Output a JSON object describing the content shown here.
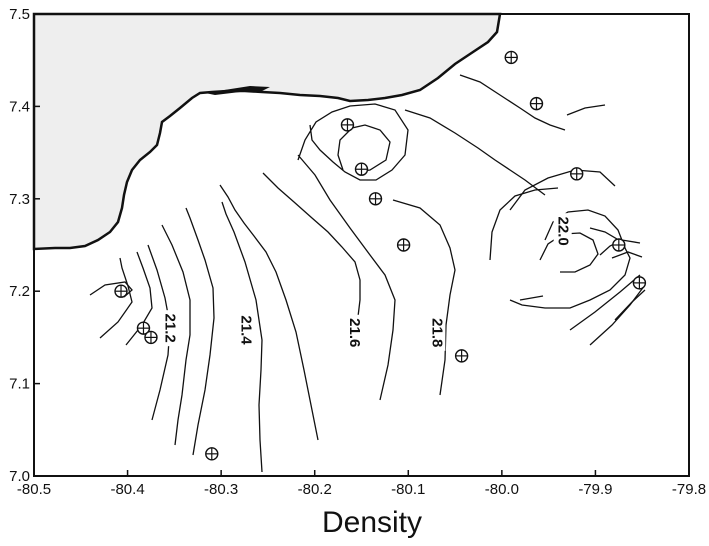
{
  "chart_data": {
    "type": "contour",
    "xlabel": "Density",
    "xlim": [
      -80.5,
      -79.8
    ],
    "ylim": [
      7.0,
      7.5
    ],
    "x_ticks": [
      "-80.5",
      "-80.4",
      "-80.3",
      "-80.2",
      "-80.1",
      "-80.0",
      "-79.9",
      "-79.8"
    ],
    "y_ticks": [
      "7.0",
      "7.1",
      "7.2",
      "7.3",
      "7.4",
      "7.5"
    ],
    "contour_labels": [
      {
        "text": "21.2",
        "lon": -80.355,
        "lat": 7.16
      },
      {
        "text": "21.4",
        "lon": -80.274,
        "lat": 7.158
      },
      {
        "text": "21.6",
        "lon": -80.158,
        "lat": 7.155
      },
      {
        "text": "21.8",
        "lon": -80.07,
        "lat": 7.155
      },
      {
        "text": "22.0",
        "lon": -79.935,
        "lat": 7.265
      }
    ],
    "stations": [
      {
        "lon": -79.99,
        "lat": 7.453
      },
      {
        "lon": -79.963,
        "lat": 7.403
      },
      {
        "lon": -80.165,
        "lat": 7.38
      },
      {
        "lon": -80.15,
        "lat": 7.332
      },
      {
        "lon": -80.135,
        "lat": 7.3
      },
      {
        "lon": -79.92,
        "lat": 7.327
      },
      {
        "lon": -80.105,
        "lat": 7.25
      },
      {
        "lon": -79.875,
        "lat": 7.25
      },
      {
        "lon": -79.853,
        "lat": 7.209
      },
      {
        "lon": -80.407,
        "lat": 7.2
      },
      {
        "lon": -80.383,
        "lat": 7.16
      },
      {
        "lon": -80.375,
        "lat": 7.15
      },
      {
        "lon": -80.043,
        "lat": 7.13
      },
      {
        "lon": -80.31,
        "lat": 7.024
      }
    ]
  }
}
